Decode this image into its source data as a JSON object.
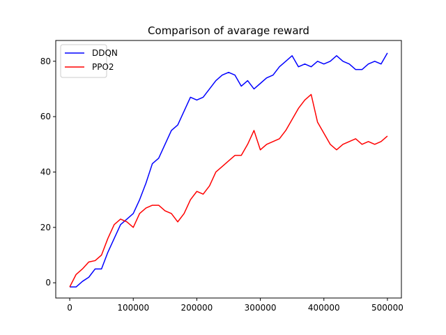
{
  "chart_data": {
    "type": "line",
    "title": "Comparison of avarage reward",
    "xlabel": "",
    "ylabel": "",
    "xlim": [
      -22000,
      522000
    ],
    "ylim": [
      -5.5,
      87.5
    ],
    "x_ticks": [
      0,
      100000,
      200000,
      300000,
      400000,
      500000
    ],
    "x_tick_labels": [
      "0",
      "100000",
      "200000",
      "300000",
      "400000",
      "500000"
    ],
    "y_ticks": [
      0,
      20,
      40,
      60,
      80
    ],
    "y_tick_labels": [
      "0",
      "20",
      "40",
      "60",
      "80"
    ],
    "grid": false,
    "legend_position": "top-left",
    "series": [
      {
        "name": "DDQN",
        "color": "#0000ff",
        "x": [
          0,
          10000,
          20000,
          30000,
          40000,
          50000,
          60000,
          70000,
          80000,
          90000,
          100000,
          110000,
          120000,
          130000,
          140000,
          150000,
          160000,
          170000,
          180000,
          190000,
          200000,
          210000,
          220000,
          230000,
          240000,
          250000,
          260000,
          270000,
          280000,
          290000,
          300000,
          310000,
          320000,
          330000,
          340000,
          350000,
          360000,
          370000,
          380000,
          390000,
          400000,
          410000,
          420000,
          430000,
          440000,
          450000,
          460000,
          470000,
          480000,
          490000,
          500000
        ],
        "values": [
          -1.5,
          -1.5,
          0.5,
          2,
          5,
          5,
          11,
          16,
          21,
          23,
          25,
          30,
          36,
          43,
          45,
          50,
          55,
          57,
          62,
          67,
          66,
          67,
          70,
          73,
          75,
          76,
          75,
          71,
          73,
          70,
          72,
          74,
          75,
          78,
          80,
          82,
          78,
          79,
          78,
          80,
          79,
          80,
          82,
          80,
          79,
          77,
          77,
          79,
          80,
          79,
          83
        ]
      },
      {
        "name": "PPO2",
        "color": "#ff0000",
        "x": [
          0,
          10000,
          20000,
          30000,
          40000,
          50000,
          60000,
          70000,
          80000,
          90000,
          100000,
          110000,
          120000,
          130000,
          140000,
          150000,
          160000,
          170000,
          180000,
          190000,
          200000,
          210000,
          220000,
          230000,
          240000,
          250000,
          260000,
          270000,
          280000,
          290000,
          300000,
          310000,
          320000,
          330000,
          340000,
          350000,
          360000,
          370000,
          380000,
          390000,
          400000,
          410000,
          420000,
          430000,
          440000,
          450000,
          460000,
          470000,
          480000,
          490000,
          500000
        ],
        "values": [
          -1.5,
          3,
          5,
          7.5,
          8,
          10,
          16,
          21,
          23,
          22,
          20,
          25,
          27,
          28,
          28,
          26,
          25,
          22,
          25,
          30,
          33,
          32,
          35,
          40,
          42,
          44,
          46,
          46,
          50,
          55,
          48,
          50,
          51,
          52,
          55,
          59,
          63,
          66,
          68,
          58,
          54,
          50,
          48,
          50,
          51,
          52,
          50,
          51,
          50,
          51,
          53
        ]
      }
    ]
  }
}
